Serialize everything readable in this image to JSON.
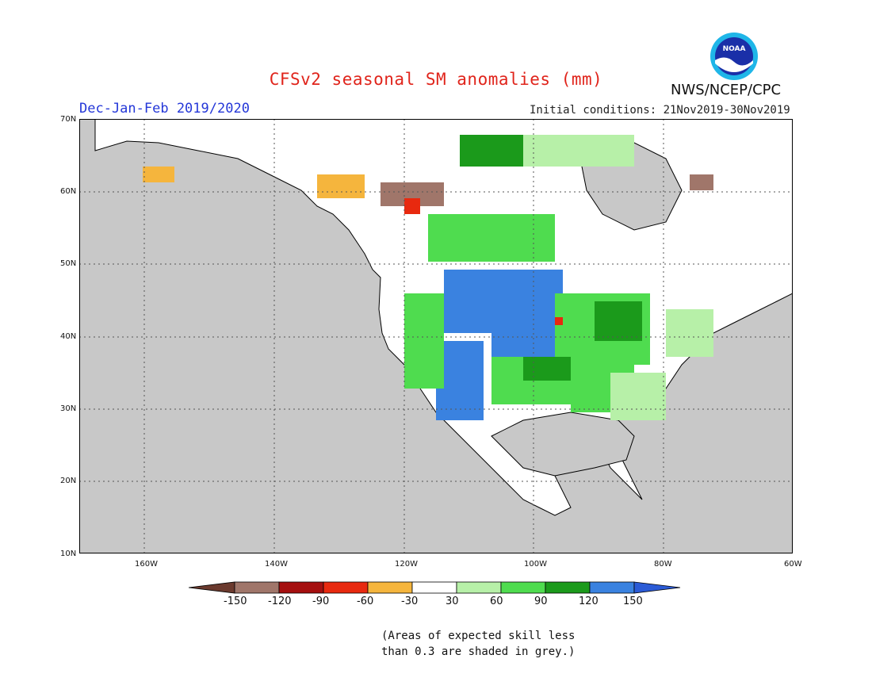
{
  "title": "CFSv2 seasonal SM anomalies (mm)",
  "season": "Dec-Jan-Feb 2019/2020",
  "initial_conditions": "Initial conditions: 21Nov2019-30Nov2019",
  "agency": "NWS/NCEP/CPC",
  "logo_text": "NOAA",
  "lat_labels": [
    "70N",
    "60N",
    "50N",
    "40N",
    "30N",
    "20N",
    "10N"
  ],
  "lon_labels": [
    "160W",
    "140W",
    "120W",
    "100W",
    "80W",
    "60W"
  ],
  "legend": {
    "ticks": [
      "-150",
      "-120",
      "-90",
      "-60",
      "-30",
      "30",
      "60",
      "90",
      "120",
      "150"
    ],
    "colors": [
      "#6b3a2e",
      "#a0766a",
      "#a50f0f",
      "#e8290f",
      "#f5b53d",
      "#ffffff",
      "#b7f0a8",
      "#4fdc4f",
      "#1b9a1b",
      "#3a82e0",
      "#2b5bd6"
    ]
  },
  "note_line1": "(Areas of expected skill less",
  "note_line2": "than 0.3 are shaded in grey.)",
  "colors": {
    "ocean": "#c8c8c8",
    "land_grey": "#c8c8c8",
    "land_white": "#ffffff",
    "title": "#e0241b",
    "season": "#2437d8"
  }
}
